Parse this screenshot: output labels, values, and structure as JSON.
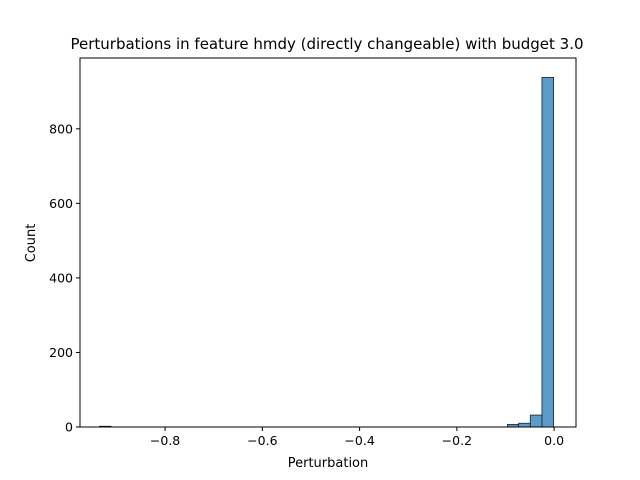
{
  "chart_data": {
    "type": "bar",
    "title": "Perturbations in feature hmdy (directly changeable) with budget 3.0",
    "xlabel": "Perturbation",
    "ylabel": "Count",
    "xlim": [
      -0.975,
      0.045
    ],
    "ylim": [
      0,
      990
    ],
    "xticks": [
      -0.8,
      -0.6,
      -0.4,
      -0.2,
      0.0
    ],
    "xtick_labels": [
      "−0.8",
      "−0.6",
      "−0.4",
      "−0.2",
      "0.0"
    ],
    "yticks": [
      0,
      200,
      400,
      600,
      800
    ],
    "ytick_labels": [
      "0",
      "200",
      "400",
      "600",
      "800"
    ],
    "bar_color": "#5a9bcc",
    "bins": [
      {
        "x0": -0.935,
        "x1": -0.911,
        "count": 2
      },
      {
        "x0": -0.096,
        "x1": -0.073,
        "count": 7
      },
      {
        "x0": -0.073,
        "x1": -0.049,
        "count": 10
      },
      {
        "x0": -0.049,
        "x1": -0.025,
        "count": 32
      },
      {
        "x0": -0.025,
        "x1": -0.001,
        "count": 938
      }
    ],
    "grid": false,
    "legend": "none"
  }
}
